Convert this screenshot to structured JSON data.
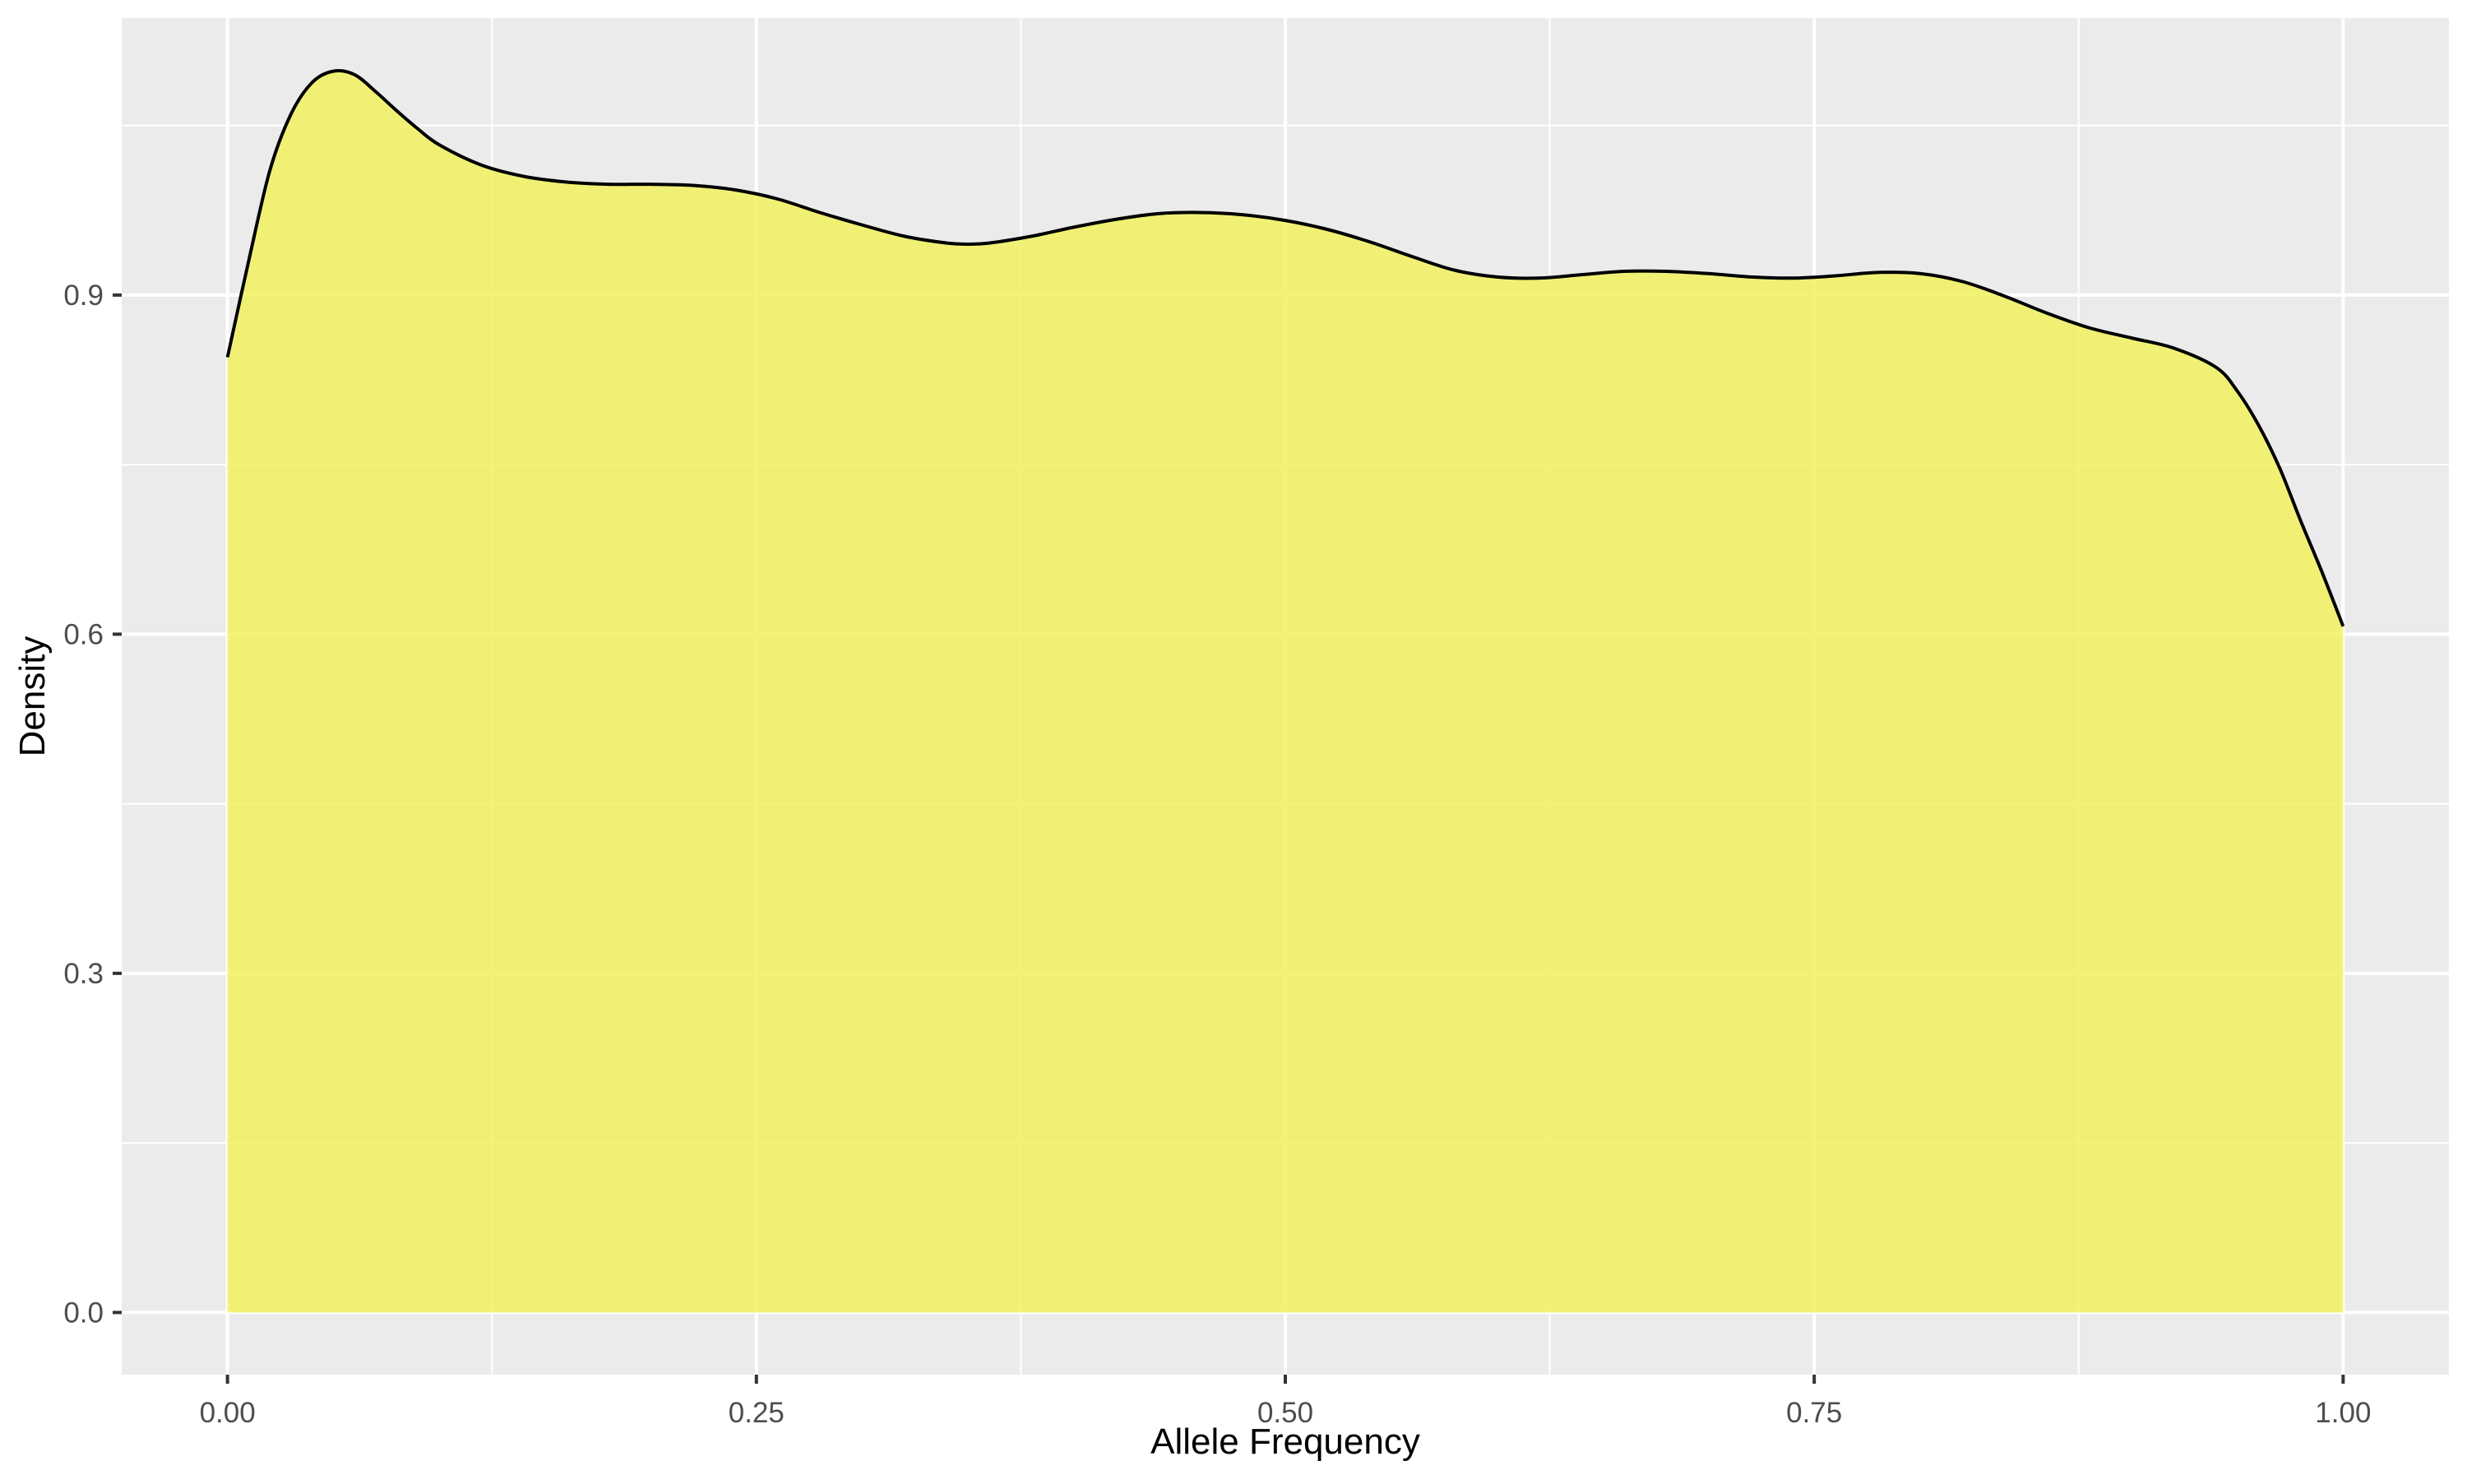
{
  "chart_data": {
    "type": "area",
    "title": "",
    "xlabel": "Allele Frequency",
    "ylabel": "Density",
    "xlim": [
      -0.05,
      1.05
    ],
    "ylim": [
      -0.055,
      1.145
    ],
    "x_ticks": [
      0.0,
      0.25,
      0.5,
      0.75,
      1.0
    ],
    "x_tick_labels": [
      "0.00",
      "0.25",
      "0.50",
      "0.75",
      "1.00"
    ],
    "x_minor_ticks": [
      0.125,
      0.375,
      0.625,
      0.875
    ],
    "y_ticks": [
      0.0,
      0.3,
      0.6,
      0.9
    ],
    "y_tick_labels": [
      "0.0",
      "0.3",
      "0.6",
      "0.9"
    ],
    "y_minor_ticks": [
      0.15,
      0.45,
      0.75,
      1.05
    ],
    "grid": true,
    "legend": "none",
    "series": [
      {
        "x": [
          0.0,
          0.01,
          0.02,
          0.03,
          0.04,
          0.05,
          0.06,
          0.07,
          0.08,
          0.09,
          0.1,
          0.12,
          0.14,
          0.16,
          0.18,
          0.2,
          0.22,
          0.24,
          0.26,
          0.28,
          0.3,
          0.32,
          0.34,
          0.35,
          0.36,
          0.38,
          0.4,
          0.42,
          0.44,
          0.46,
          0.48,
          0.5,
          0.52,
          0.54,
          0.56,
          0.58,
          0.6,
          0.62,
          0.64,
          0.66,
          0.68,
          0.7,
          0.72,
          0.74,
          0.76,
          0.78,
          0.8,
          0.82,
          0.84,
          0.86,
          0.88,
          0.9,
          0.92,
          0.94,
          0.95,
          0.96,
          0.97,
          0.98,
          0.99,
          1.0
        ],
        "y": [
          0.845,
          0.93,
          1.01,
          1.06,
          1.088,
          1.098,
          1.095,
          1.08,
          1.063,
          1.047,
          1.033,
          1.015,
          1.005,
          1.0,
          0.998,
          0.998,
          0.997,
          0.993,
          0.985,
          0.973,
          0.962,
          0.952,
          0.946,
          0.945,
          0.946,
          0.952,
          0.96,
          0.967,
          0.972,
          0.973,
          0.971,
          0.966,
          0.958,
          0.947,
          0.934,
          0.922,
          0.916,
          0.915,
          0.918,
          0.921,
          0.921,
          0.919,
          0.916,
          0.915,
          0.917,
          0.92,
          0.919,
          0.912,
          0.899,
          0.884,
          0.871,
          0.862,
          0.853,
          0.836,
          0.815,
          0.785,
          0.747,
          0.7,
          0.655,
          0.607
        ]
      }
    ],
    "colors": {
      "fill": "#f1f25f",
      "fill_opacity": 0.85,
      "line": "#000000",
      "panel_background": "#ebebeb",
      "grid": "#ffffff",
      "axis_text": "#4d4d4d",
      "axis_title": "#000000"
    }
  }
}
